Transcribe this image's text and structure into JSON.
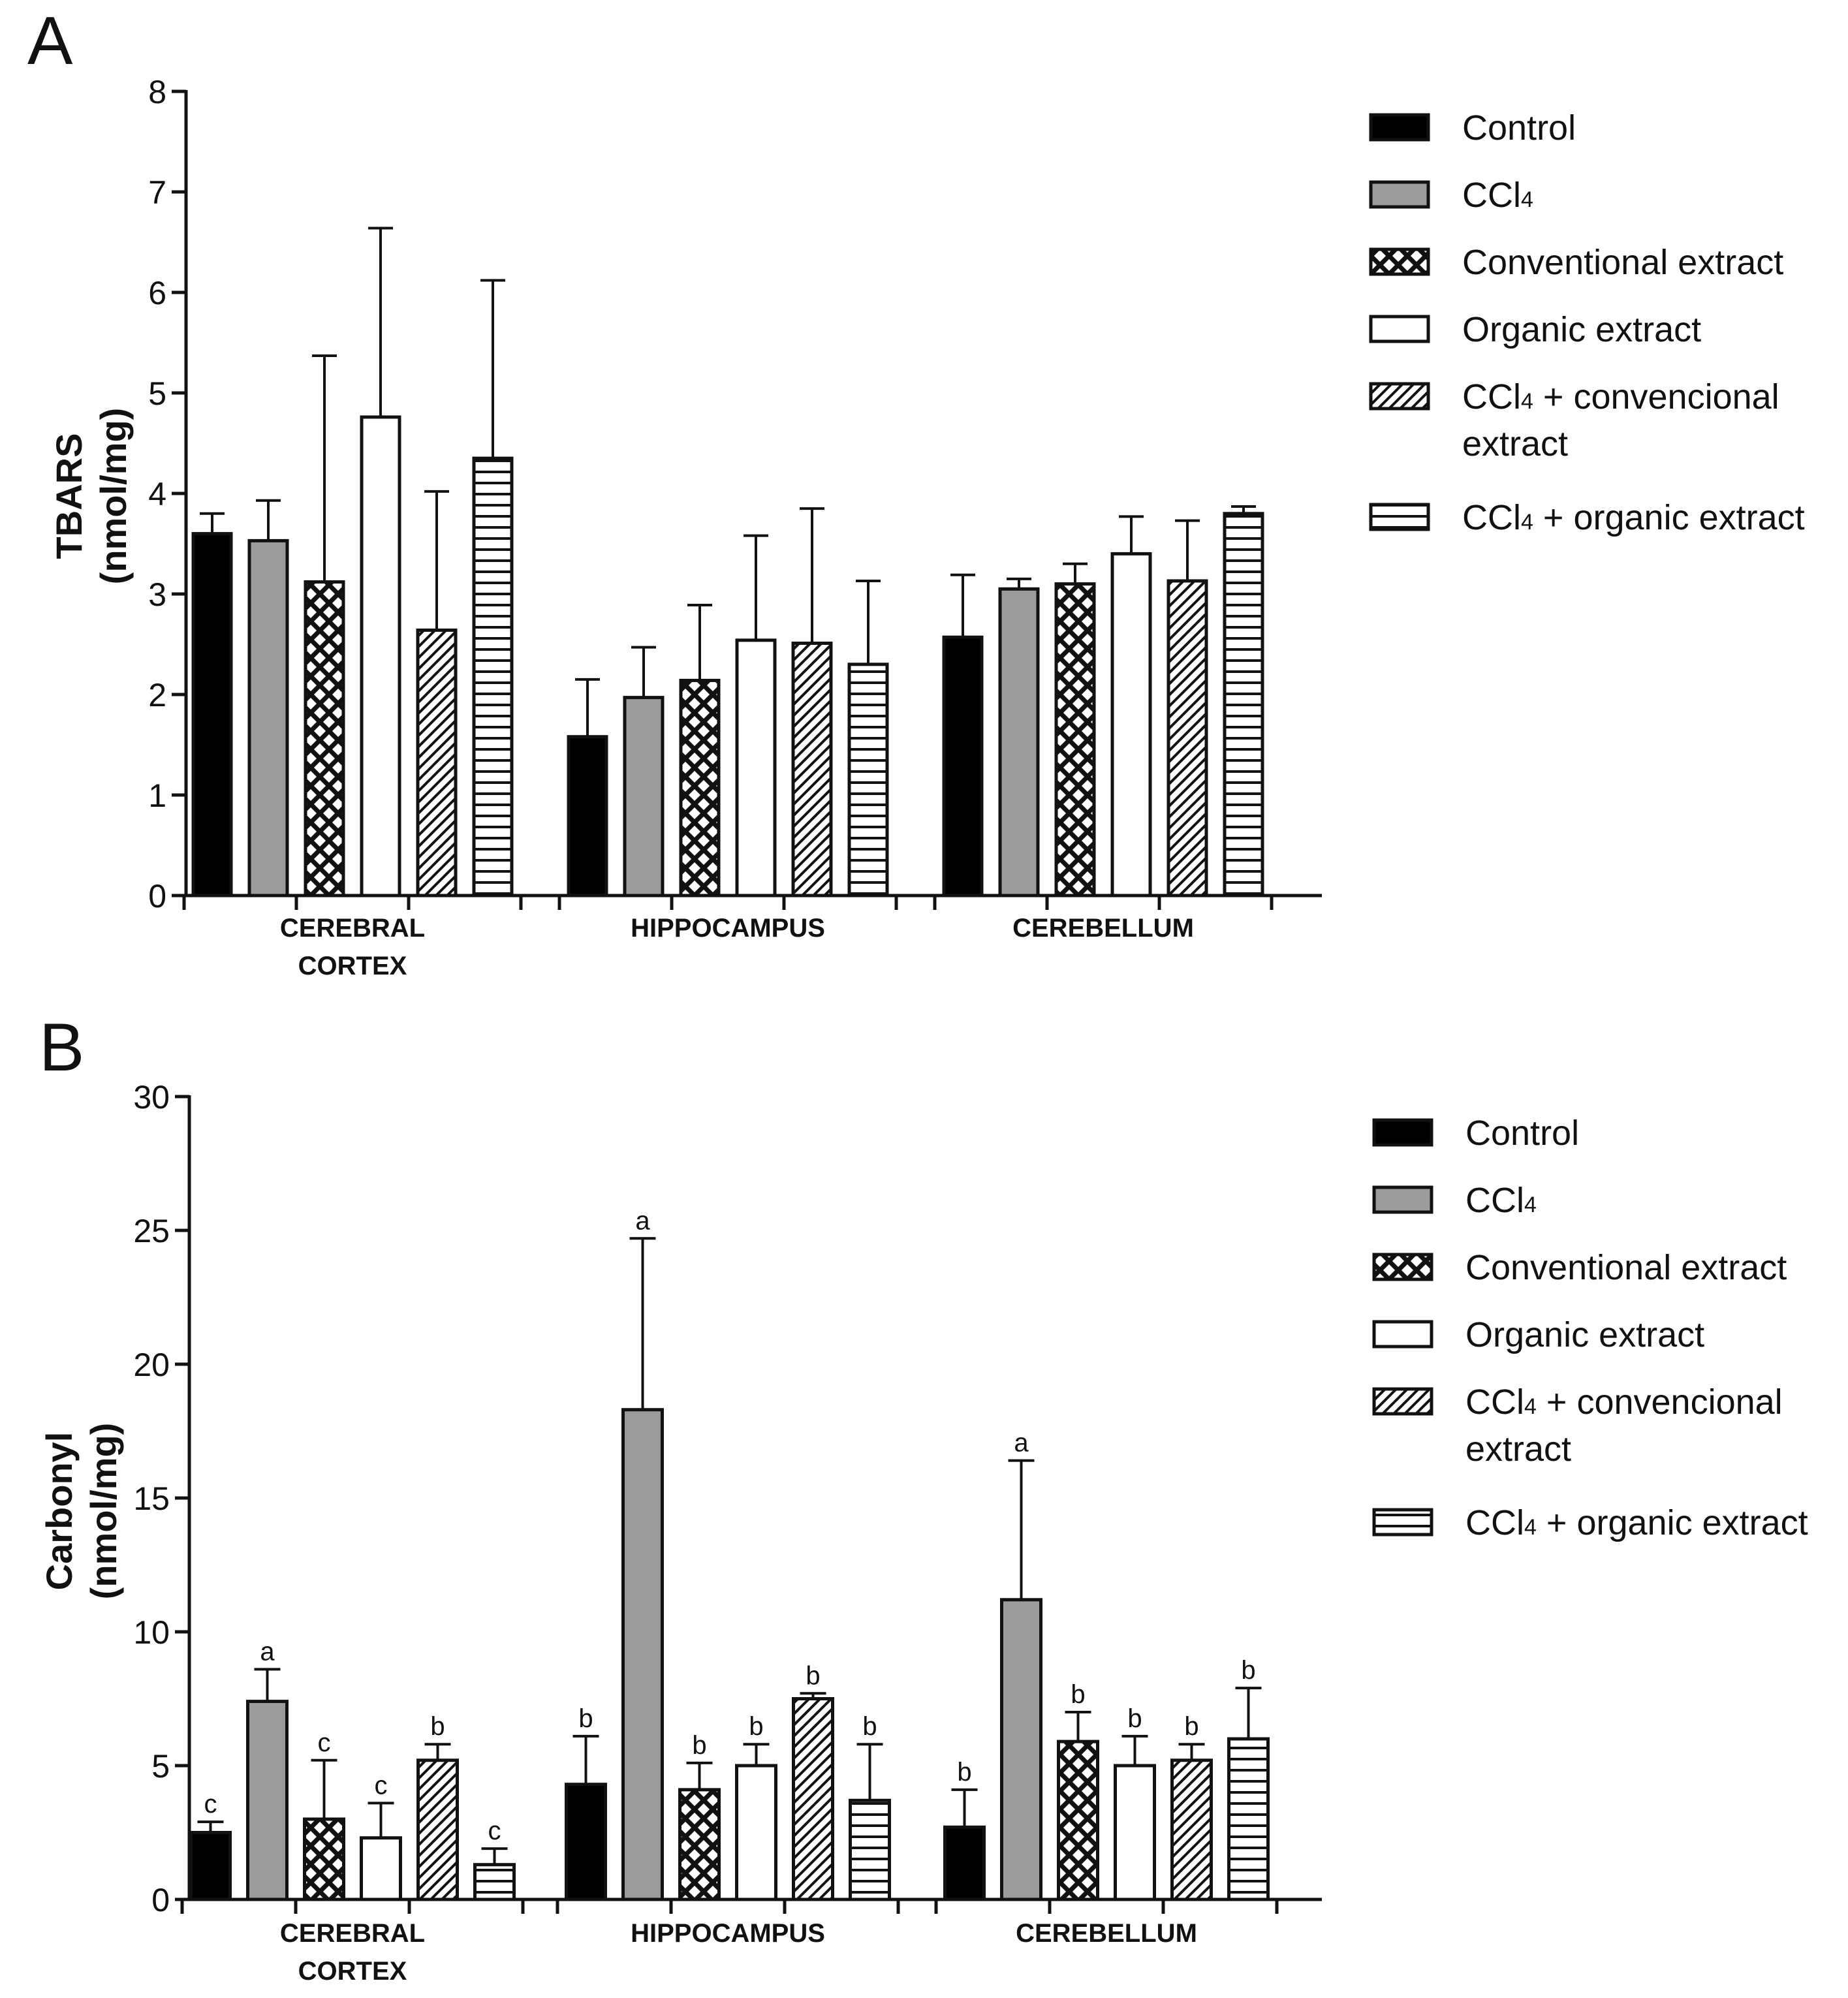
{
  "chart_data": [
    {
      "panel": "A",
      "type": "bar",
      "title": "",
      "ylabel": [
        "TBARS",
        "(nmol/mg)"
      ],
      "ylim": [
        0,
        8
      ],
      "yticks": [
        "0",
        "1",
        "2",
        "3",
        "4",
        "5",
        "6",
        "7",
        "8"
      ],
      "categories": [
        [
          "CEREBRAL",
          "CORTEX"
        ],
        [
          "HIPPOCAMPUS"
        ],
        [
          "CEREBELLUM"
        ]
      ],
      "series": [
        {
          "name": "Control",
          "values": [
            3.6,
            1.58,
            2.57
          ],
          "errors": [
            0.2,
            0.57,
            0.62
          ],
          "labels": [
            "",
            "",
            ""
          ]
        },
        {
          "name": "CCl4",
          "values": [
            3.53,
            1.97,
            3.05
          ],
          "errors": [
            0.4,
            0.5,
            0.1
          ],
          "labels": [
            "",
            "",
            ""
          ]
        },
        {
          "name": "Conventional extract",
          "values": [
            3.12,
            2.14,
            3.1
          ],
          "errors": [
            2.25,
            0.75,
            0.2
          ],
          "labels": [
            "",
            "",
            ""
          ]
        },
        {
          "name": "Organic extract",
          "values": [
            4.76,
            2.54,
            3.4
          ],
          "errors": [
            1.88,
            1.04,
            0.37
          ],
          "labels": [
            "",
            "",
            ""
          ]
        },
        {
          "name": "CCl4 + convencional extract",
          "values": [
            2.64,
            2.51,
            3.13
          ],
          "errors": [
            1.38,
            1.34,
            0.6
          ],
          "labels": [
            "",
            "",
            ""
          ]
        },
        {
          "name": "CCl4 + organic extract",
          "values": [
            4.35,
            2.3,
            3.8
          ],
          "errors": [
            1.77,
            0.83,
            0.07
          ],
          "labels": [
            "",
            "",
            ""
          ]
        }
      ]
    },
    {
      "panel": "B",
      "type": "bar",
      "title": "",
      "ylabel": [
        "Carbonyl",
        "(nmol/mg)"
      ],
      "ylim": [
        0,
        30
      ],
      "yticks": [
        "0",
        "5",
        "10",
        "15",
        "20",
        "25",
        "30"
      ],
      "categories": [
        [
          "CEREBRAL",
          "CORTEX"
        ],
        [
          "HIPPOCAMPUS"
        ],
        [
          "CEREBELLUM"
        ]
      ],
      "series": [
        {
          "name": "Control",
          "values": [
            2.5,
            4.3,
            2.7
          ],
          "errors": [
            0.4,
            1.8,
            1.4
          ],
          "labels": [
            "c",
            "b",
            "b"
          ]
        },
        {
          "name": "CCl4",
          "values": [
            7.4,
            18.3,
            11.2
          ],
          "errors": [
            1.2,
            6.4,
            5.2
          ],
          "labels": [
            "a",
            "a",
            "a"
          ]
        },
        {
          "name": "Conventional extract",
          "values": [
            3.0,
            4.1,
            5.9
          ],
          "errors": [
            2.2,
            1.0,
            1.1
          ],
          "labels": [
            "c",
            "b",
            "b"
          ]
        },
        {
          "name": "Organic extract",
          "values": [
            2.3,
            5.0,
            5.0
          ],
          "errors": [
            1.3,
            0.8,
            1.1
          ],
          "labels": [
            "c",
            "b",
            "b"
          ]
        },
        {
          "name": "CCl4 + convencional extract",
          "values": [
            5.2,
            7.5,
            5.2
          ],
          "errors": [
            0.6,
            0.2,
            0.6
          ],
          "labels": [
            "b",
            "b",
            "b"
          ]
        },
        {
          "name": "CCl4 + organic extract",
          "values": [
            1.3,
            3.7,
            6.0
          ],
          "errors": [
            0.6,
            2.1,
            1.9
          ],
          "labels": [
            "c",
            "b",
            "b"
          ]
        }
      ]
    }
  ],
  "legend": [
    {
      "key": "control",
      "pattern": "solid-black",
      "parts": [
        {
          "t": "Control"
        }
      ]
    },
    {
      "key": "ccl4",
      "pattern": "solid-gray",
      "parts": [
        {
          "t": "CCl"
        },
        {
          "t": "4",
          "sub": true
        }
      ]
    },
    {
      "key": "conv",
      "pattern": "crosshatch",
      "parts": [
        {
          "t": "Conventional extract"
        }
      ]
    },
    {
      "key": "org",
      "pattern": "white",
      "parts": [
        {
          "t": "Organic extract"
        }
      ]
    },
    {
      "key": "ccl4conv",
      "pattern": "diagonal",
      "parts": [
        {
          "t": "CCl"
        },
        {
          "t": "4",
          "sub": true
        },
        {
          "t": " + convencional"
        }
      ],
      "line2": "extract"
    },
    {
      "key": "ccl4org",
      "pattern": "horizontal",
      "parts": [
        {
          "t": "CCl"
        },
        {
          "t": "4",
          "sub": true
        },
        {
          "t": " + organic extract"
        }
      ]
    }
  ],
  "colors": {
    "control": "#000000",
    "ccl4": "#9b9b9b",
    "white": "#ffffff",
    "ink": "#111111"
  }
}
